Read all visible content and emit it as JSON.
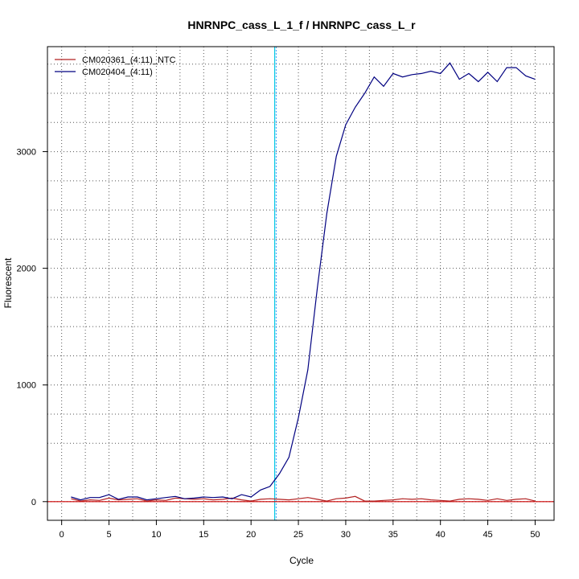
{
  "chart_data": {
    "type": "line",
    "title": "HNRNPC_cass_L_1_f / HNRNPC_cass_L_r",
    "xlabel": "Cycle",
    "ylabel": "Fluorescent",
    "xlim": [
      -1.5,
      52
    ],
    "ylim": [
      -160,
      3900
    ],
    "xticks": [
      0,
      5,
      10,
      15,
      20,
      25,
      30,
      35,
      40,
      45,
      50
    ],
    "yticks": [
      0,
      1000,
      2000,
      3000
    ],
    "grid": true,
    "legend": "top-left",
    "threshold_x": 22.5,
    "threshold_color": "#00c8e6",
    "baseline_color": "#cc0000",
    "series": [
      {
        "name": "CM020361_(4:11)_NTC",
        "color": "#b22222",
        "x": [
          1,
          2,
          3,
          4,
          5,
          6,
          7,
          8,
          9,
          10,
          11,
          12,
          13,
          14,
          15,
          16,
          17,
          18,
          19,
          20,
          21,
          22,
          23,
          24,
          25,
          26,
          27,
          28,
          29,
          30,
          31,
          32,
          33,
          34,
          35,
          36,
          37,
          38,
          39,
          40,
          41,
          42,
          43,
          44,
          45,
          46,
          47,
          48,
          49,
          50
        ],
        "values": [
          25,
          5,
          15,
          10,
          30,
          15,
          20,
          25,
          5,
          15,
          10,
          30,
          25,
          20,
          25,
          15,
          20,
          30,
          15,
          5,
          20,
          25,
          20,
          15,
          25,
          35,
          20,
          5,
          25,
          30,
          45,
          5,
          5,
          10,
          15,
          25,
          20,
          25,
          15,
          10,
          5,
          20,
          25,
          20,
          10,
          25,
          10,
          20,
          25,
          5
        ]
      },
      {
        "name": "CM020404_(4:11)",
        "color": "#000080",
        "x": [
          1,
          2,
          3,
          4,
          5,
          6,
          7,
          8,
          9,
          10,
          11,
          12,
          13,
          14,
          15,
          16,
          17,
          18,
          19,
          20,
          21,
          22,
          23,
          24,
          25,
          26,
          27,
          28,
          29,
          30,
          31,
          32,
          33,
          34,
          35,
          36,
          37,
          38,
          39,
          40,
          41,
          42,
          43,
          44,
          45,
          46,
          47,
          48,
          49,
          50
        ],
        "values": [
          40,
          15,
          35,
          35,
          60,
          20,
          40,
          40,
          15,
          25,
          35,
          45,
          25,
          30,
          40,
          35,
          40,
          25,
          60,
          40,
          100,
          130,
          240,
          380,
          720,
          1130,
          1830,
          2470,
          2960,
          3230,
          3380,
          3500,
          3640,
          3560,
          3670,
          3640,
          3660,
          3670,
          3690,
          3670,
          3760,
          3620,
          3670,
          3600,
          3680,
          3600,
          3720,
          3720,
          3650,
          3620
        ]
      }
    ]
  }
}
